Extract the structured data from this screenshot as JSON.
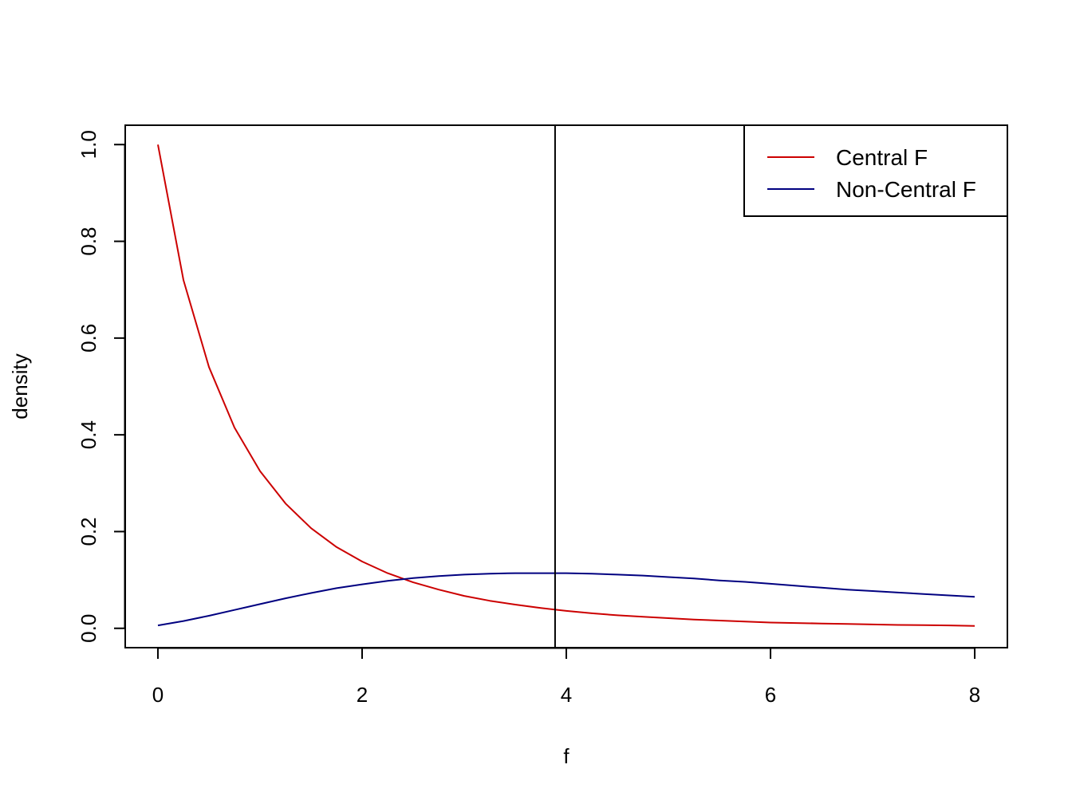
{
  "chart_data": {
    "type": "line",
    "title": "",
    "xlabel": "f",
    "ylabel": "density",
    "xlim": [
      -0.32,
      8.32
    ],
    "ylim": [
      -0.04,
      1.04
    ],
    "x_ticks": [
      0,
      2,
      4,
      6,
      8
    ],
    "x_tick_labels": [
      "0",
      "2",
      "4",
      "6",
      "8"
    ],
    "y_ticks": [
      0.0,
      0.2,
      0.4,
      0.6,
      0.8,
      1.0
    ],
    "y_tick_labels": [
      "0.0",
      "0.2",
      "0.4",
      "0.6",
      "0.8",
      "1.0"
    ],
    "grid": false,
    "legend_position": "top-right",
    "x": [
      0,
      0.25,
      0.5,
      0.75,
      1,
      1.25,
      1.5,
      1.75,
      2,
      2.25,
      2.5,
      2.75,
      3,
      3.25,
      3.5,
      3.75,
      4,
      4.25,
      4.5,
      4.75,
      5,
      5.25,
      5.5,
      5.75,
      6,
      6.25,
      6.5,
      6.75,
      7,
      7.25,
      7.5,
      7.75,
      8
    ],
    "series": [
      {
        "name": "Central F",
        "color": "#cc0000",
        "values": [
          1.0,
          0.72,
          0.54,
          0.415,
          0.325,
          0.258,
          0.207,
          0.168,
          0.138,
          0.114,
          0.095,
          0.08,
          0.067,
          0.057,
          0.049,
          0.042,
          0.036,
          0.031,
          0.027,
          0.024,
          0.021,
          0.018,
          0.016,
          0.014,
          0.012,
          0.011,
          0.01,
          0.009,
          0.008,
          0.007,
          0.0065,
          0.006,
          0.005
        ]
      },
      {
        "name": "Non-Central F",
        "color": "#000080",
        "values": [
          0.006,
          0.015,
          0.026,
          0.038,
          0.05,
          0.062,
          0.073,
          0.083,
          0.091,
          0.098,
          0.104,
          0.108,
          0.111,
          0.113,
          0.114,
          0.114,
          0.114,
          0.113,
          0.111,
          0.109,
          0.106,
          0.103,
          0.099,
          0.096,
          0.092,
          0.088,
          0.084,
          0.08,
          0.077,
          0.074,
          0.071,
          0.068,
          0.065
        ]
      }
    ],
    "vline": {
      "x": 3.89,
      "color": "#000000"
    }
  }
}
